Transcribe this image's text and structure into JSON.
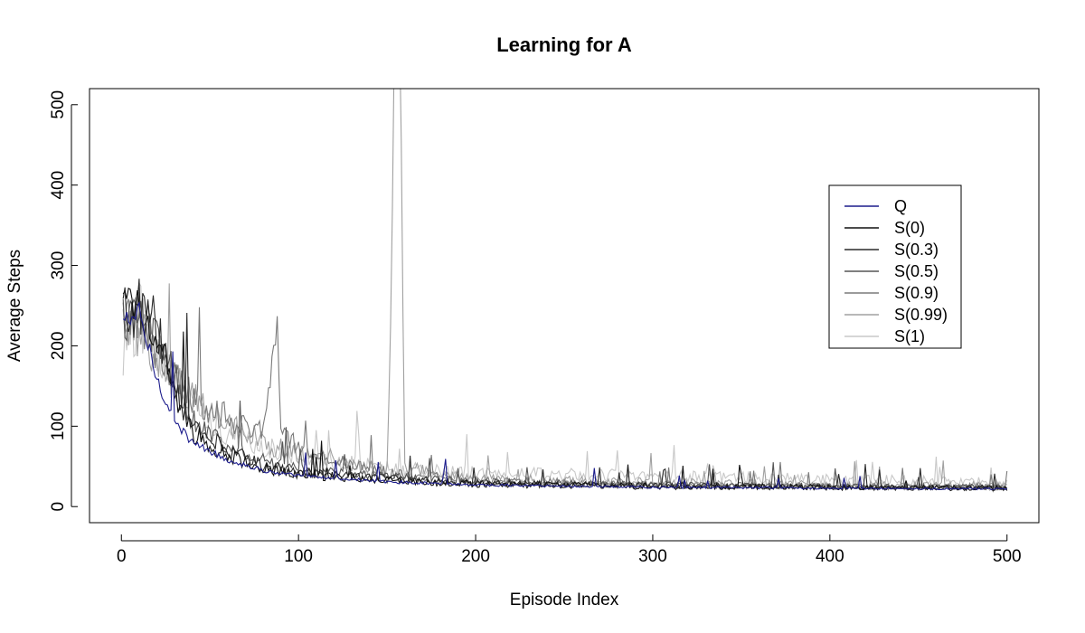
{
  "chart_data": {
    "type": "line",
    "title": "Learning for A",
    "xlabel": "Episode Index",
    "ylabel": "Average Steps",
    "xlim": [
      -18,
      518
    ],
    "ylim": [
      -20,
      520
    ],
    "xticks": [
      0,
      100,
      200,
      300,
      400,
      500
    ],
    "yticks": [
      0,
      100,
      200,
      300,
      400,
      500
    ],
    "grid": false,
    "legend_position": "right",
    "series": [
      {
        "name": "Q",
        "color": "#1c1c8c",
        "points": [
          [
            1,
            230
          ],
          [
            10,
            240
          ],
          [
            20,
            160
          ],
          [
            30,
            105
          ],
          [
            40,
            80
          ],
          [
            60,
            58
          ],
          [
            80,
            45
          ],
          [
            100,
            38
          ],
          [
            150,
            31
          ],
          [
            200,
            27
          ],
          [
            300,
            24
          ],
          [
            400,
            23
          ],
          [
            500,
            22
          ]
        ],
        "noise": 0.06
      },
      {
        "name": "S(0)",
        "color": "#111111",
        "points": [
          [
            1,
            250
          ],
          [
            10,
            255
          ],
          [
            20,
            215
          ],
          [
            30,
            135
          ],
          [
            40,
            92
          ],
          [
            60,
            63
          ],
          [
            80,
            48
          ],
          [
            100,
            40
          ],
          [
            150,
            33
          ],
          [
            200,
            28
          ],
          [
            300,
            25
          ],
          [
            400,
            24
          ],
          [
            500,
            23
          ]
        ],
        "noise": 0.15
      },
      {
        "name": "S(0.3)",
        "color": "#2a2a2a",
        "points": [
          [
            1,
            240
          ],
          [
            10,
            250
          ],
          [
            20,
            225
          ],
          [
            30,
            150
          ],
          [
            40,
            100
          ],
          [
            60,
            70
          ],
          [
            80,
            52
          ],
          [
            100,
            43
          ],
          [
            150,
            35
          ],
          [
            200,
            29
          ],
          [
            300,
            26
          ],
          [
            400,
            24
          ],
          [
            500,
            23
          ]
        ],
        "noise": 0.15
      },
      {
        "name": "S(0.5)",
        "color": "#555555",
        "points": [
          [
            1,
            235
          ],
          [
            10,
            240
          ],
          [
            20,
            210
          ],
          [
            30,
            160
          ],
          [
            40,
            110
          ],
          [
            60,
            75
          ],
          [
            80,
            58
          ],
          [
            100,
            47
          ],
          [
            150,
            37
          ],
          [
            200,
            31
          ],
          [
            300,
            27
          ],
          [
            400,
            25
          ],
          [
            500,
            24
          ]
        ],
        "noise": 0.15
      },
      {
        "name": "S(0.9)",
        "color": "#7a7a7a",
        "points": [
          [
            1,
            225
          ],
          [
            10,
            235
          ],
          [
            20,
            200
          ],
          [
            30,
            165
          ],
          [
            40,
            135
          ],
          [
            60,
            110
          ],
          [
            80,
            90
          ],
          [
            88,
            237
          ],
          [
            90,
            95
          ],
          [
            100,
            72
          ],
          [
            120,
            58
          ],
          [
            140,
            50
          ],
          [
            150,
            42
          ],
          [
            200,
            33
          ],
          [
            300,
            27
          ],
          [
            400,
            25
          ],
          [
            500,
            25
          ]
        ],
        "noise": 0.16
      },
      {
        "name": "S(0.99)",
        "color": "#a0a0a0",
        "points": [
          [
            1,
            210
          ],
          [
            10,
            230
          ],
          [
            20,
            190
          ],
          [
            30,
            160
          ],
          [
            40,
            135
          ],
          [
            60,
            105
          ],
          [
            80,
            80
          ],
          [
            100,
            65
          ],
          [
            150,
            45
          ],
          [
            155,
            600
          ],
          [
            157,
            600
          ],
          [
            160,
            48
          ],
          [
            200,
            35
          ],
          [
            300,
            30
          ],
          [
            400,
            28
          ],
          [
            500,
            26
          ]
        ],
        "noise": 0.18
      },
      {
        "name": "S(1)",
        "color": "#c8c8c8",
        "points": [
          [
            1,
            200
          ],
          [
            10,
            240
          ],
          [
            20,
            190
          ],
          [
            30,
            150
          ],
          [
            40,
            125
          ],
          [
            60,
            95
          ],
          [
            80,
            75
          ],
          [
            100,
            62
          ],
          [
            150,
            48
          ],
          [
            200,
            42
          ],
          [
            300,
            38
          ],
          [
            400,
            34
          ],
          [
            500,
            30
          ]
        ],
        "noise": 0.2
      }
    ]
  }
}
